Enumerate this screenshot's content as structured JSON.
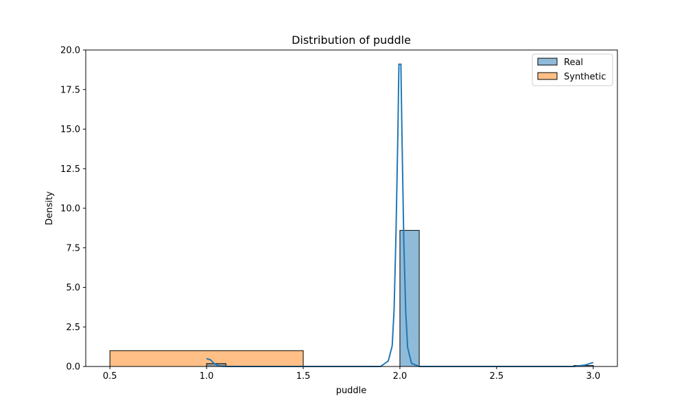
{
  "chart_data": {
    "type": "bar",
    "title": "Distribution of puddle",
    "xlabel": "puddle",
    "ylabel": "Density",
    "xlim": [
      0.375,
      3.125
    ],
    "ylim": [
      0,
      20
    ],
    "xticks": [
      "0.5",
      "1.0",
      "1.5",
      "2.0",
      "2.5",
      "3.0"
    ],
    "xtick_values": [
      0.5,
      1.0,
      1.5,
      2.0,
      2.5,
      3.0
    ],
    "yticks": [
      "0.0",
      "2.5",
      "5.0",
      "7.5",
      "10.0",
      "12.5",
      "15.0",
      "17.5",
      "20.0"
    ],
    "ytick_values": [
      0,
      2.5,
      5,
      7.5,
      10,
      12.5,
      15,
      17.5,
      20
    ],
    "grid": false,
    "legend_position": "top-right",
    "series": [
      {
        "name": "Real",
        "color": "#1f77b4",
        "bins": [
          {
            "x0": 1.0,
            "x1": 1.1,
            "value": 0.18
          },
          {
            "x0": 2.0,
            "x1": 2.1,
            "value": 8.6
          },
          {
            "x0": 2.9,
            "x1": 3.0,
            "value": 0.06
          }
        ],
        "kde": {
          "x": [
            1.0,
            1.02,
            1.04,
            1.06,
            1.08,
            1.12,
            1.3,
            1.6,
            1.9,
            1.94,
            1.96,
            1.97,
            1.98,
            1.99,
            1.995,
            2.005,
            2.01,
            2.02,
            2.03,
            2.04,
            2.06,
            2.1,
            2.3,
            2.6,
            2.9,
            2.96,
            3.0
          ],
          "y": [
            0.5,
            0.42,
            0.18,
            0.05,
            0.01,
            0.0,
            0.0,
            0.0,
            0.0,
            0.35,
            1.3,
            3.6,
            8.5,
            15.0,
            19.1,
            19.1,
            15.0,
            8.0,
            3.5,
            1.2,
            0.2,
            0.0,
            0.0,
            0.0,
            0.0,
            0.1,
            0.25
          ]
        }
      },
      {
        "name": "Synthetic",
        "color": "#ff7f0e",
        "bins": [
          {
            "x0": 0.5,
            "x1": 1.5,
            "value": 1.0
          }
        ]
      }
    ]
  }
}
